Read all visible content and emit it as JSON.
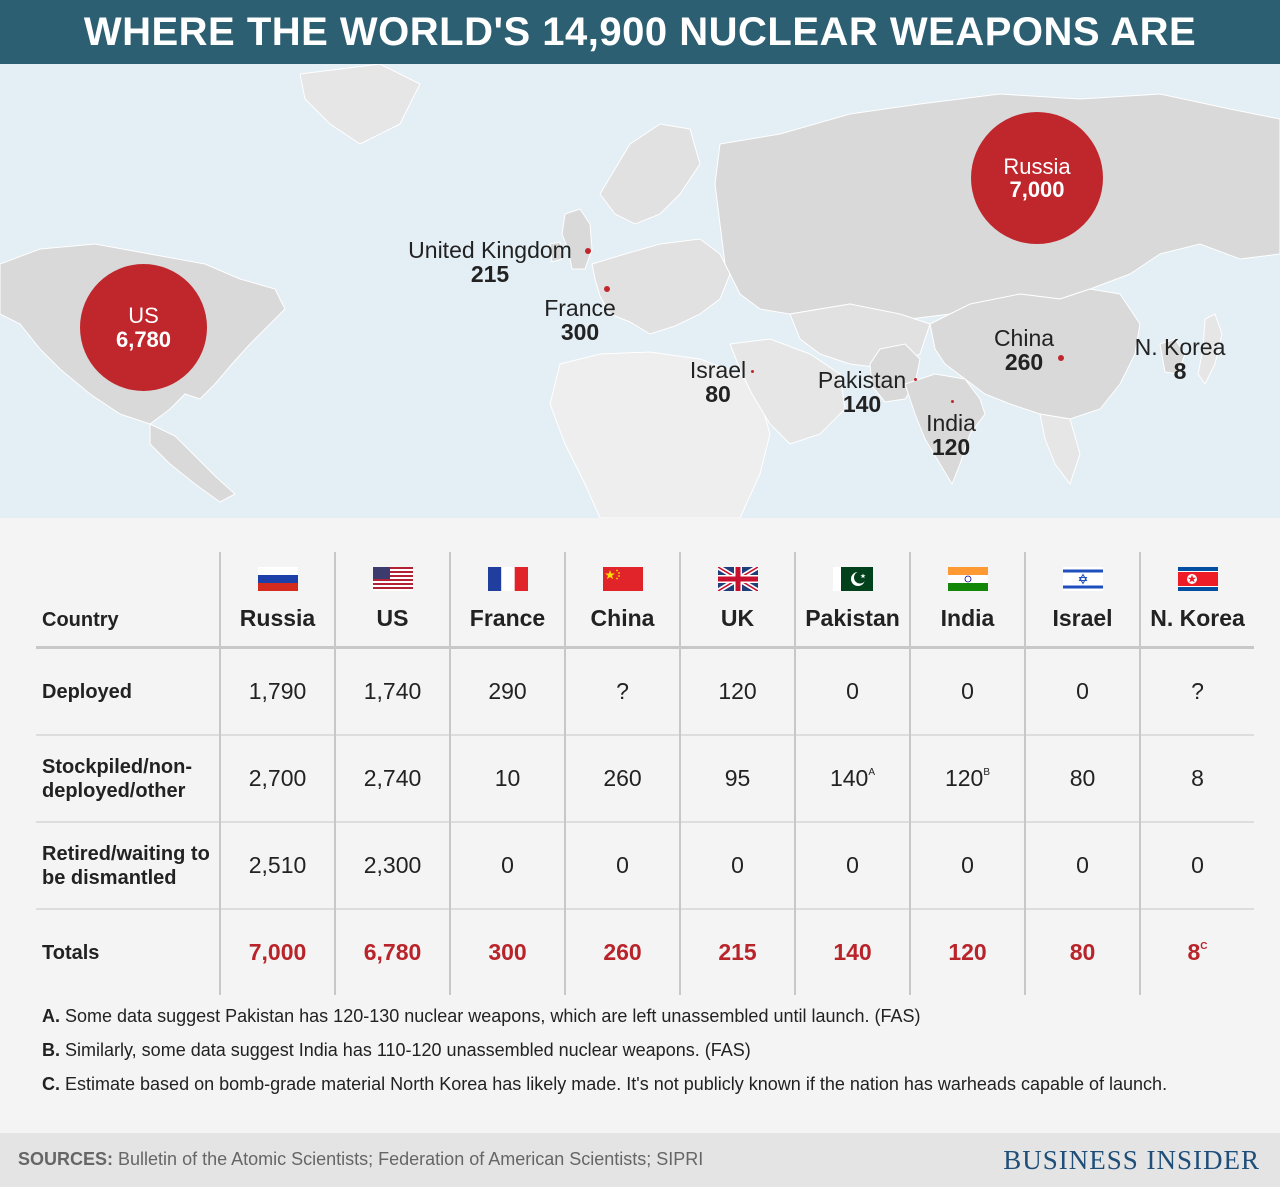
{
  "title": "WHERE THE WORLD'S 14,900 NUCLEAR WEAPONS ARE",
  "map": {
    "russia": {
      "name": "Russia",
      "value": "7,000"
    },
    "us": {
      "name": "US",
      "value": "6,780"
    },
    "uk": {
      "name": "United Kingdom",
      "value": "215"
    },
    "france": {
      "name": "France",
      "value": "300"
    },
    "israel": {
      "name": "Israel",
      "value": "80"
    },
    "pakistan": {
      "name": "Pakistan",
      "value": "140"
    },
    "india": {
      "name": "India",
      "value": "120"
    },
    "china": {
      "name": "China",
      "value": "260"
    },
    "nkorea": {
      "name": "N. Korea",
      "value": "8"
    }
  },
  "table": {
    "header_label": "Country",
    "countries": [
      "Russia",
      "US",
      "France",
      "China",
      "UK",
      "Pakistan",
      "India",
      "Israel",
      "N. Korea"
    ],
    "flags": [
      "russia-flag-icon",
      "us-flag-icon",
      "france-flag-icon",
      "china-flag-icon",
      "uk-flag-icon",
      "pakistan-flag-icon",
      "india-flag-icon",
      "israel-flag-icon",
      "north-korea-flag-icon"
    ],
    "rows": [
      {
        "label": "Deployed",
        "values": [
          "1,790",
          "1,740",
          "290",
          "?",
          "120",
          "0",
          "0",
          "0",
          "?"
        ]
      },
      {
        "label": "Stockpiled/non-deployed/other",
        "values": [
          "2,700",
          "2,740",
          "10",
          "260",
          "95",
          "140",
          "120",
          "80",
          "8"
        ]
      },
      {
        "label": "Retired/waiting to be dismantled",
        "values": [
          "2,510",
          "2,300",
          "0",
          "0",
          "0",
          "0",
          "0",
          "0",
          "0"
        ]
      },
      {
        "label": "Totals",
        "values": [
          "7,000",
          "6,780",
          "300",
          "260",
          "215",
          "140",
          "120",
          "80",
          "8"
        ]
      }
    ],
    "footnote_marks": {
      "pakistan_stockpiled": "A",
      "india_stockpiled": "B",
      "nkorea_total": "C"
    }
  },
  "notes": [
    {
      "mark": "A.",
      "text": "Some data suggest Pakistan has 120-130 nuclear weapons, which are left unassembled until launch. (FAS)"
    },
    {
      "mark": "B.",
      "text": "Similarly, some data suggest India has 110-120 unassembled nuclear weapons. (FAS)"
    },
    {
      "mark": "C.",
      "text": "Estimate based on bomb-grade material North Korea has likely made. It's not publicly known if the nation has warheads capable of launch."
    }
  ],
  "footer": {
    "sources_label": "SOURCES:",
    "sources_text": "Bulletin of the Atomic Scientists; Federation of American Scientists; SIPRI",
    "brand": "BUSINESS INSIDER"
  },
  "colors": {
    "header_bg": "#2d5f73",
    "accent_red": "#c0272d",
    "ocean": "#e3eef5",
    "land": "#d8d8d8"
  }
}
